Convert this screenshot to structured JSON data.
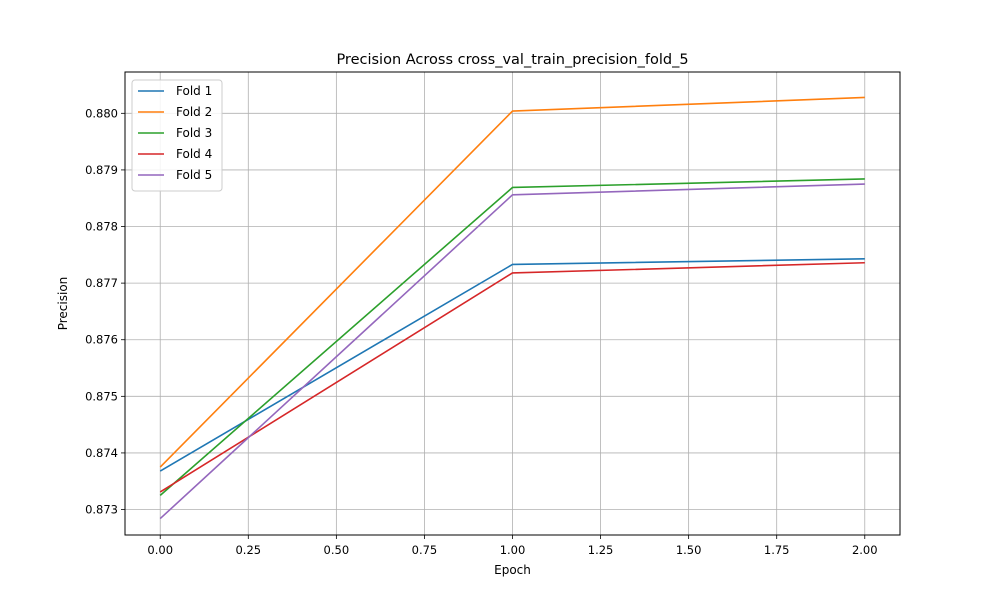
{
  "chart_data": {
    "type": "line",
    "title": "Precision Across cross_val_train_precision_fold_5",
    "xlabel": "Epoch",
    "ylabel": "Precision",
    "xlim": [
      -0.1,
      2.1
    ],
    "ylim": [
      0.87255,
      0.88073
    ],
    "x_ticks": [
      0.0,
      0.25,
      0.5,
      0.75,
      1.0,
      1.25,
      1.5,
      1.75,
      2.0
    ],
    "x_tick_labels": [
      "0.00",
      "0.25",
      "0.50",
      "0.75",
      "1.00",
      "1.25",
      "1.50",
      "1.75",
      "2.00"
    ],
    "y_ticks": [
      0.873,
      0.874,
      0.875,
      0.876,
      0.877,
      0.878,
      0.879,
      0.88
    ],
    "y_tick_labels": [
      "0.873",
      "0.874",
      "0.875",
      "0.876",
      "0.877",
      "0.878",
      "0.879",
      "0.880"
    ],
    "grid": true,
    "legend_position": "top-left",
    "x": [
      0,
      1,
      2
    ],
    "series": [
      {
        "name": "Fold 1",
        "color": "#1f77b4",
        "values": [
          0.87368,
          0.87733,
          0.87743
        ]
      },
      {
        "name": "Fold 2",
        "color": "#ff7f0e",
        "values": [
          0.87375,
          0.88004,
          0.88028
        ]
      },
      {
        "name": "Fold 3",
        "color": "#2ca02c",
        "values": [
          0.87325,
          0.87869,
          0.87884
        ]
      },
      {
        "name": "Fold 4",
        "color": "#d62728",
        "values": [
          0.87331,
          0.87718,
          0.87736
        ]
      },
      {
        "name": "Fold 5",
        "color": "#9467bd",
        "values": [
          0.87284,
          0.87856,
          0.87875
        ]
      }
    ]
  }
}
